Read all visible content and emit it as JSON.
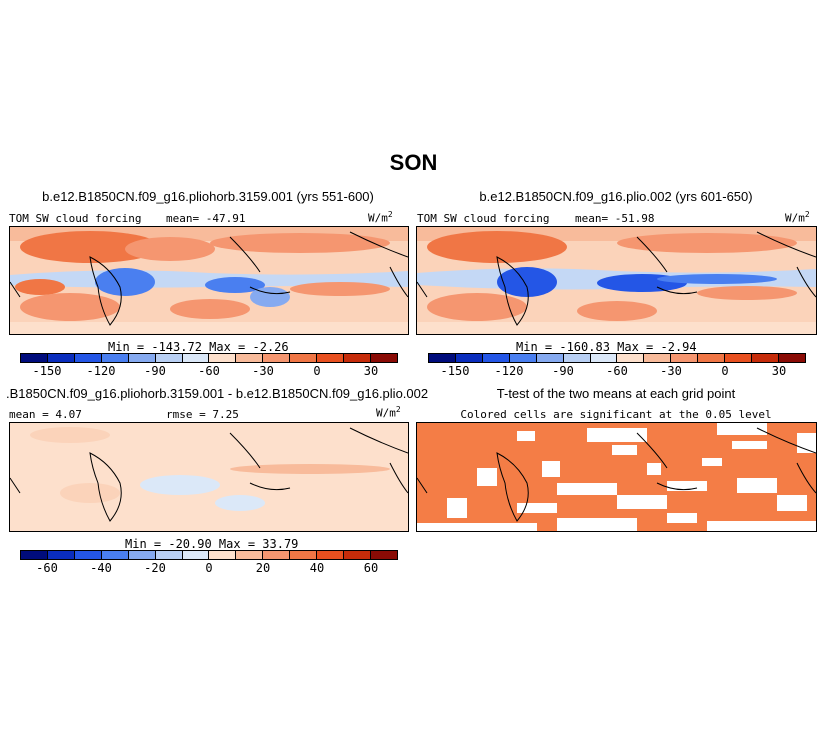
{
  "title": "SON",
  "panels": {
    "top_left": {
      "title": "b.e12.B1850CN.f09_g16.pliohorb.3159.001 (yrs 551-600)",
      "variable": "TOM SW cloud forcing",
      "mean": "mean= -47.91",
      "units": "W/m",
      "units_exp": "2",
      "minmax": "Min = -143.72  Max =  -2.26"
    },
    "top_right": {
      "title": "b.e12.B1850CN.f09_g16.plio.002 (yrs 601-650)",
      "variable": "TOM SW cloud forcing",
      "mean": "mean= -51.98",
      "units": "W/m",
      "units_exp": "2",
      "minmax": "Min = -160.83  Max =  -2.94"
    },
    "bottom_left": {
      "title": ".B1850CN.f09_g16.pliohorb.3159.001 - b.e12.B1850CN.f09_g16.plio.002",
      "mean": "mean =  4.07",
      "rmse": "rmse =   7.25",
      "units": "W/m",
      "units_exp": "2",
      "minmax": "Min = -20.90  Max =  33.79"
    },
    "bottom_right": {
      "title": "T-test of the two means at each grid point",
      "subtitle": "Colored cells are significant at the 0.05 level"
    }
  },
  "colorbars": {
    "top": {
      "labels": [
        "-150",
        "-120",
        "-90",
        "-60",
        "-30",
        "0",
        "30"
      ],
      "colors": [
        "#000c7c",
        "#0a2dbd",
        "#2456e6",
        "#4a7ff0",
        "#86aaf0",
        "#b9d0f4",
        "#dbe8f8",
        "#fde0cc",
        "#f8bb9b",
        "#f59670",
        "#f07645",
        "#e8501f",
        "#c62c0a",
        "#8a0b05"
      ]
    },
    "bottom": {
      "labels": [
        "-60",
        "-40",
        "-20",
        "0",
        "20",
        "40",
        "60"
      ],
      "colors": [
        "#000c7c",
        "#0a2dbd",
        "#2456e6",
        "#4a7ff0",
        "#86aaf0",
        "#b9d0f4",
        "#dbe8f8",
        "#fde0cc",
        "#f8bb9b",
        "#f59670",
        "#f07645",
        "#e8501f",
        "#c62c0a",
        "#8a0b05"
      ]
    }
  },
  "colors": {
    "significant": "#f47d46",
    "light_orange": "#fbd3ba",
    "orange": "#f59670",
    "light_blue": "#c4d8f5",
    "blue": "#4a7ff0"
  }
}
